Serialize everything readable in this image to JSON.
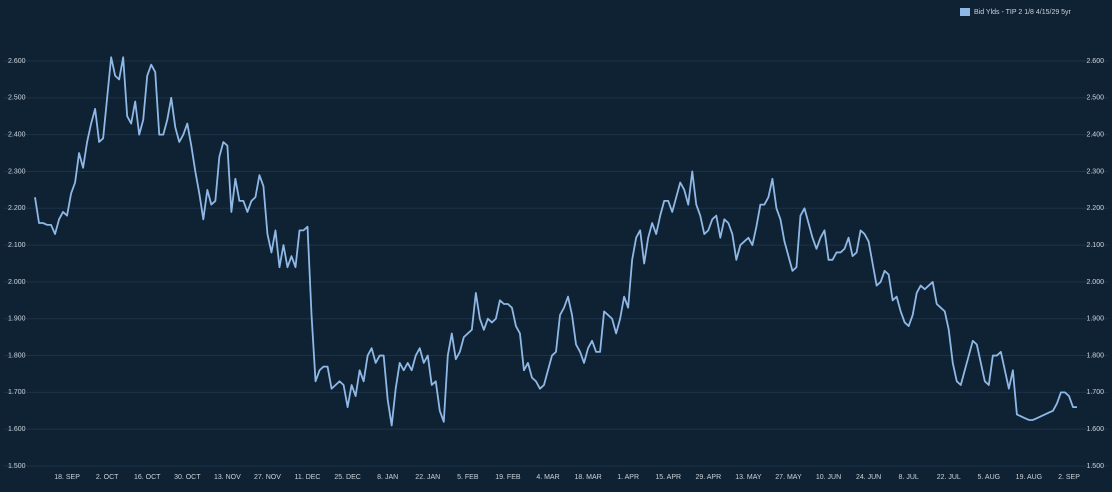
{
  "chart_data": {
    "type": "line",
    "legend": "top-right",
    "grid": true,
    "background": "#0f2233",
    "ylim": [
      1.5,
      2.6
    ],
    "yticks": [
      {
        "value": 1.5,
        "label": "1.500"
      },
      {
        "value": 1.6,
        "label": "1.600"
      },
      {
        "value": 1.7,
        "label": "1.700"
      },
      {
        "value": 1.8,
        "label": "1.800"
      },
      {
        "value": 1.9,
        "label": "1.900"
      },
      {
        "value": 2.0,
        "label": "2.000"
      },
      {
        "value": 2.1,
        "label": "2.100"
      },
      {
        "value": 2.2,
        "label": "2.200"
      },
      {
        "value": 2.3,
        "label": "2.300"
      },
      {
        "value": 2.4,
        "label": "2.400"
      },
      {
        "value": 2.5,
        "label": "2.500"
      },
      {
        "value": 2.6,
        "label": "2.600"
      }
    ],
    "categories": [
      null,
      null,
      null,
      null,
      null,
      null,
      null,
      null,
      "18. SEP",
      null,
      null,
      null,
      null,
      null,
      null,
      null,
      null,
      null,
      "2. OCT",
      null,
      null,
      null,
      null,
      null,
      null,
      null,
      null,
      null,
      "16. OCT",
      null,
      null,
      null,
      null,
      null,
      null,
      null,
      null,
      null,
      "30. OCT",
      null,
      null,
      null,
      null,
      null,
      null,
      null,
      null,
      null,
      "13. NOV",
      null,
      null,
      null,
      null,
      null,
      null,
      null,
      null,
      null,
      "27. NOV",
      null,
      null,
      null,
      null,
      null,
      null,
      null,
      null,
      null,
      "11. DEC",
      null,
      null,
      null,
      null,
      null,
      null,
      null,
      null,
      null,
      "25. DEC",
      null,
      null,
      null,
      null,
      null,
      null,
      null,
      null,
      null,
      "8. JAN",
      null,
      null,
      null,
      null,
      null,
      null,
      null,
      null,
      null,
      "22. JAN",
      null,
      null,
      null,
      null,
      null,
      null,
      null,
      null,
      null,
      "5. FEB",
      null,
      null,
      null,
      null,
      null,
      null,
      null,
      null,
      null,
      "19. FEB",
      null,
      null,
      null,
      null,
      null,
      null,
      null,
      null,
      null,
      "4. MAR",
      null,
      null,
      null,
      null,
      null,
      null,
      null,
      null,
      null,
      "18. MAR",
      null,
      null,
      null,
      null,
      null,
      null,
      null,
      null,
      null,
      "1. APR",
      null,
      null,
      null,
      null,
      null,
      null,
      null,
      null,
      null,
      "15. APR",
      null,
      null,
      null,
      null,
      null,
      null,
      null,
      null,
      null,
      "29. APR",
      null,
      null,
      null,
      null,
      null,
      null,
      null,
      null,
      null,
      "13. MAY",
      null,
      null,
      null,
      null,
      null,
      null,
      null,
      null,
      null,
      "27. MAY",
      null,
      null,
      null,
      null,
      null,
      null,
      null,
      null,
      null,
      "10. JUN",
      null,
      null,
      null,
      null,
      null,
      null,
      null,
      null,
      null,
      "24. JUN",
      null,
      null,
      null,
      null,
      null,
      null,
      null,
      null,
      null,
      "8. JUL",
      null,
      null,
      null,
      null,
      null,
      null,
      null,
      null,
      null,
      "22. JUL",
      null,
      null,
      null,
      null,
      null,
      null,
      null,
      null,
      null,
      "5. AUG",
      null,
      null,
      null,
      null,
      null,
      null,
      null,
      null,
      null,
      "19. AUG",
      null,
      null,
      null,
      null,
      null,
      null,
      null,
      null,
      null,
      "2. SEP",
      null,
      null
    ],
    "series": [
      {
        "name": "Bid Ylds - TIP 2 1/8 4/15/29 5yr",
        "color": "#8fb8e6",
        "values": [
          2.23,
          2.16,
          2.16,
          2.155,
          2.155,
          2.13,
          2.17,
          2.19,
          2.18,
          2.24,
          2.27,
          2.35,
          2.31,
          2.38,
          2.43,
          2.47,
          2.38,
          2.39,
          2.5,
          2.61,
          2.56,
          2.55,
          2.61,
          2.45,
          2.43,
          2.49,
          2.4,
          2.44,
          2.56,
          2.59,
          2.57,
          2.4,
          2.4,
          2.44,
          2.5,
          2.42,
          2.38,
          2.4,
          2.43,
          2.37,
          2.3,
          2.24,
          2.17,
          2.25,
          2.21,
          2.22,
          2.34,
          2.38,
          2.37,
          2.19,
          2.28,
          2.22,
          2.22,
          2.19,
          2.22,
          2.23,
          2.29,
          2.26,
          2.13,
          2.08,
          2.14,
          2.04,
          2.1,
          2.04,
          2.07,
          2.04,
          2.14,
          2.14,
          2.15,
          1.91,
          1.73,
          1.76,
          1.77,
          1.77,
          1.71,
          1.72,
          1.73,
          1.72,
          1.66,
          1.72,
          1.69,
          1.76,
          1.73,
          1.8,
          1.82,
          1.78,
          1.8,
          1.8,
          1.68,
          1.61,
          1.71,
          1.78,
          1.76,
          1.78,
          1.76,
          1.8,
          1.82,
          1.78,
          1.8,
          1.72,
          1.73,
          1.65,
          1.62,
          1.8,
          1.86,
          1.79,
          1.81,
          1.85,
          1.86,
          1.87,
          1.97,
          1.9,
          1.87,
          1.9,
          1.89,
          1.9,
          1.95,
          1.94,
          1.94,
          1.93,
          1.88,
          1.86,
          1.76,
          1.78,
          1.74,
          1.73,
          1.71,
          1.72,
          1.76,
          1.8,
          1.81,
          1.91,
          1.93,
          1.96,
          1.91,
          1.83,
          1.81,
          1.78,
          1.82,
          1.84,
          1.81,
          1.81,
          1.92,
          1.91,
          1.9,
          1.86,
          1.9,
          1.96,
          1.93,
          2.06,
          2.12,
          2.14,
          2.05,
          2.12,
          2.16,
          2.13,
          2.18,
          2.22,
          2.22,
          2.19,
          2.23,
          2.27,
          2.25,
          2.21,
          2.3,
          2.21,
          2.18,
          2.13,
          2.14,
          2.17,
          2.18,
          2.12,
          2.17,
          2.16,
          2.13,
          2.06,
          2.1,
          2.11,
          2.12,
          2.1,
          2.15,
          2.21,
          2.21,
          2.23,
          2.28,
          2.2,
          2.17,
          2.11,
          2.07,
          2.03,
          2.04,
          2.18,
          2.2,
          2.16,
          2.12,
          2.09,
          2.12,
          2.14,
          2.06,
          2.06,
          2.08,
          2.08,
          2.09,
          2.12,
          2.07,
          2.08,
          2.14,
          2.13,
          2.11,
          2.05,
          1.99,
          2.0,
          2.03,
          2.02,
          1.95,
          1.96,
          1.92,
          1.89,
          1.88,
          1.91,
          1.97,
          1.99,
          1.98,
          1.99,
          2.0,
          1.94,
          1.93,
          1.92,
          1.87,
          1.78,
          1.73,
          1.72,
          1.76,
          1.8,
          1.84,
          1.83,
          1.78,
          1.73,
          1.72,
          1.8,
          1.8,
          1.81,
          1.76,
          1.71,
          1.76,
          1.64,
          1.635,
          1.63,
          1.625,
          1.625,
          1.63,
          1.635,
          1.64,
          1.645,
          1.65,
          1.67,
          1.7,
          1.7,
          1.69,
          1.66,
          1.66
        ]
      }
    ]
  }
}
